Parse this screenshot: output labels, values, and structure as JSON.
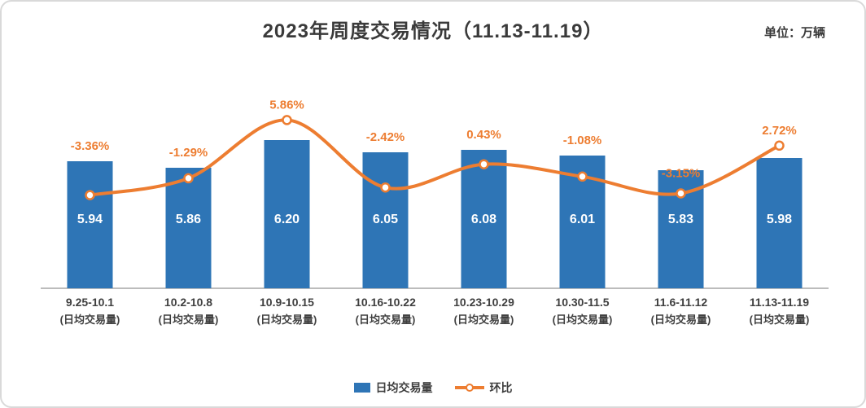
{
  "header": {
    "title": "2023年周度交易情况（11.13-11.19）",
    "unit_label": "单位：万辆"
  },
  "chart_data": {
    "type": "bar",
    "subtype": "bar+line-combo",
    "title": "2023年周度交易情况（11.13-11.19）",
    "unit": "万辆",
    "categories": [
      "9.25-10.1",
      "10.2-10.8",
      "10.9-10.15",
      "10.16-10.22",
      "10.23-10.29",
      "10.30-11.5",
      "11.6-11.12",
      "11.13-11.19"
    ],
    "category_sublabel": "(日均交易量)",
    "series": [
      {
        "name": "日均交易量",
        "type": "bar",
        "color": "#2E75B6",
        "values": [
          5.94,
          5.86,
          6.2,
          6.05,
          6.08,
          6.01,
          5.83,
          5.98
        ],
        "value_labels": [
          "5.94",
          "5.86",
          "6.20",
          "6.05",
          "6.08",
          "6.01",
          "5.83",
          "5.98"
        ]
      },
      {
        "name": "环比",
        "type": "line",
        "color": "#ED7D31",
        "marker": "circle-white-fill",
        "values_percent": [
          -3.36,
          -1.29,
          5.86,
          -2.42,
          0.43,
          -1.08,
          -3.15,
          2.72
        ],
        "labels": [
          "-3.36%",
          "-1.29%",
          "5.86%",
          "-2.42%",
          "0.43%",
          "-1.08%",
          "-3.15%",
          "2.72%"
        ]
      }
    ],
    "bar_axis": {
      "min": 4.38,
      "max": 6.4,
      "visible": false
    },
    "line_axis": {
      "unit": "%",
      "visible": false
    },
    "grid": false,
    "legend_position": "bottom-center",
    "axis_line_color": "#a6a6a6",
    "label_colors": {
      "bar_value": "#ffffff",
      "percent": "#ED7D31",
      "tick": "#3f3f3f"
    }
  }
}
